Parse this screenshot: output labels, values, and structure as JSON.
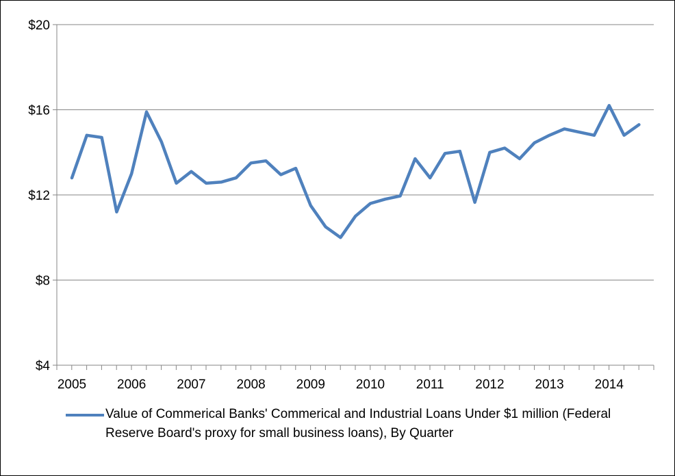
{
  "chart_data": {
    "type": "line",
    "title": "",
    "xlabel": "",
    "ylabel": "",
    "ylim": [
      4,
      20
    ],
    "yticks": [
      4,
      8,
      12,
      16,
      20
    ],
    "ytick_labels": [
      "$4",
      "$8",
      "$12",
      "$16",
      "$20"
    ],
    "xtick_labels": [
      "2005",
      "2006",
      "2007",
      "2008",
      "2009",
      "2010",
      "2011",
      "2012",
      "2013",
      "2014"
    ],
    "grid": true,
    "legend_position": "bottom",
    "series": [
      {
        "name": "Value of Commerical Banks' Commerical and Industrial Loans Under $1 million (Federal Reserve Board's proxy for small business loans), By Quarter",
        "color": "#4f81bd",
        "values": [
          12.8,
          14.8,
          14.7,
          11.2,
          13.0,
          15.9,
          14.5,
          12.55,
          13.1,
          12.55,
          12.6,
          12.8,
          13.5,
          13.6,
          12.95,
          13.25,
          11.5,
          10.5,
          10.0,
          11.0,
          11.6,
          11.8,
          11.95,
          13.7,
          12.8,
          13.95,
          14.05,
          11.65,
          14.0,
          14.2,
          13.7,
          14.45,
          14.8,
          15.1,
          14.95,
          14.8,
          16.2,
          14.8,
          15.3
        ]
      }
    ]
  }
}
